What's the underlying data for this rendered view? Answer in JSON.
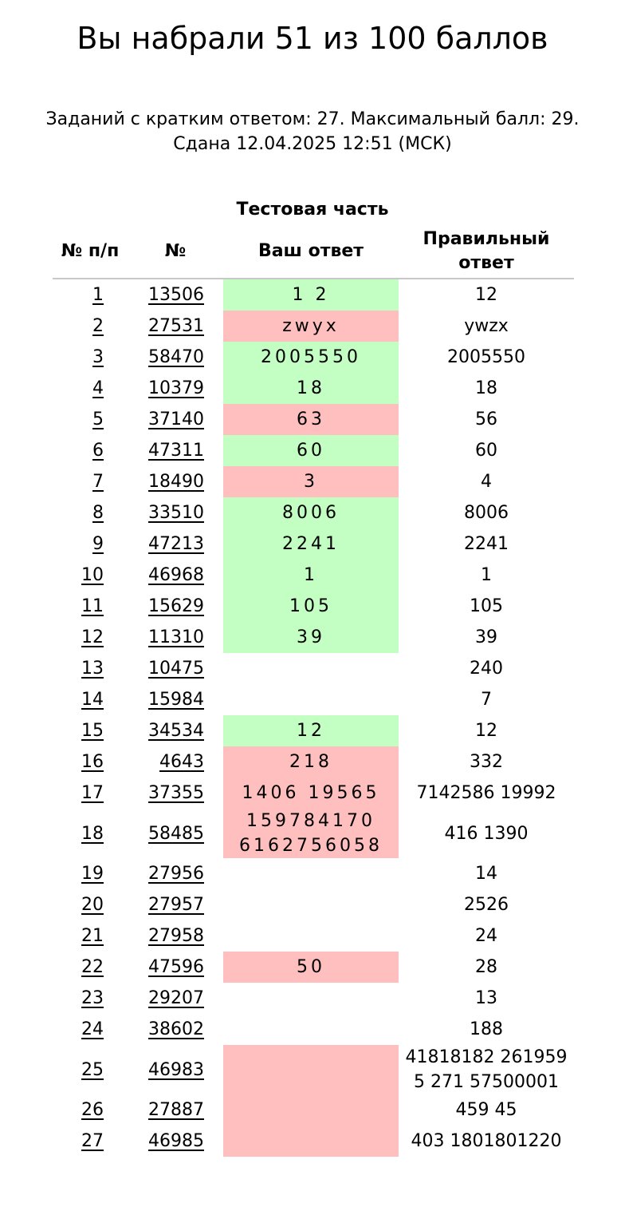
{
  "header": {
    "score_text": "Вы набрали 51 из 100 баллов",
    "summary_line": "Заданий с кратким ответом: 27. Максимальный балл: 29.",
    "submitted_line": "Сдана 12.04.2025 12:51 (МСК)"
  },
  "table": {
    "caption": "Тестовая часть",
    "columns": {
      "order": "№ п/п",
      "task_id": "№",
      "your_answer": "Ваш ответ",
      "correct_answer": "Правильный ответ"
    },
    "rows": [
      {
        "n": "1",
        "id": "13506",
        "answer": "1 2",
        "status": "correct",
        "correct": "12"
      },
      {
        "n": "2",
        "id": "27531",
        "answer": "zwyx",
        "status": "wrong",
        "correct": "ywzx"
      },
      {
        "n": "3",
        "id": "58470",
        "answer": "2005550",
        "status": "correct",
        "correct": "2005550"
      },
      {
        "n": "4",
        "id": "10379",
        "answer": "18",
        "status": "correct",
        "correct": "18"
      },
      {
        "n": "5",
        "id": "37140",
        "answer": "63",
        "status": "wrong",
        "correct": "56"
      },
      {
        "n": "6",
        "id": "47311",
        "answer": "60",
        "status": "correct",
        "correct": "60"
      },
      {
        "n": "7",
        "id": "18490",
        "answer": "3",
        "status": "wrong",
        "correct": "4"
      },
      {
        "n": "8",
        "id": "33510",
        "answer": "8006",
        "status": "correct",
        "correct": "8006"
      },
      {
        "n": "9",
        "id": "47213",
        "answer": "2241",
        "status": "correct",
        "correct": "2241"
      },
      {
        "n": "10",
        "id": "46968",
        "answer": "1",
        "status": "correct",
        "correct": "1"
      },
      {
        "n": "11",
        "id": "15629",
        "answer": "105",
        "status": "correct",
        "correct": "105"
      },
      {
        "n": "12",
        "id": "11310",
        "answer": "39",
        "status": "correct",
        "correct": "39"
      },
      {
        "n": "13",
        "id": "10475",
        "answer": "",
        "status": "empty",
        "correct": "240"
      },
      {
        "n": "14",
        "id": "15984",
        "answer": "",
        "status": "empty",
        "correct": "7"
      },
      {
        "n": "15",
        "id": "34534",
        "answer": "12",
        "status": "correct",
        "correct": "12"
      },
      {
        "n": "16",
        "id": "4643",
        "answer": "218",
        "status": "wrong",
        "correct": "332"
      },
      {
        "n": "17",
        "id": "37355",
        "answer": "1406 19565",
        "status": "wrong",
        "correct": "7142586 19992"
      },
      {
        "n": "18",
        "id": "58485",
        "answer": "159784170\n6162756058",
        "status": "wrong",
        "correct": "416 1390"
      },
      {
        "n": "19",
        "id": "27956",
        "answer": "",
        "status": "empty",
        "correct": "14"
      },
      {
        "n": "20",
        "id": "27957",
        "answer": "",
        "status": "empty",
        "correct": "2526"
      },
      {
        "n": "21",
        "id": "27958",
        "answer": "",
        "status": "empty",
        "correct": "24"
      },
      {
        "n": "22",
        "id": "47596",
        "answer": "50",
        "status": "wrong",
        "correct": "28"
      },
      {
        "n": "23",
        "id": "29207",
        "answer": "",
        "status": "empty",
        "correct": "13"
      },
      {
        "n": "24",
        "id": "38602",
        "answer": "",
        "status": "empty",
        "correct": "188"
      },
      {
        "n": "25",
        "id": "46983",
        "answer": "",
        "status": "wrong",
        "correct": "41818182 261959 5 271 57500001"
      },
      {
        "n": "26",
        "id": "27887",
        "answer": "",
        "status": "wrong",
        "correct": "459 45"
      },
      {
        "n": "27",
        "id": "46985",
        "answer": "",
        "status": "wrong",
        "correct": "403 1801801220"
      }
    ]
  },
  "colors": {
    "correct_bg": "#c3ffc3",
    "wrong_bg": "#ffbfbf",
    "header_rule": "#c8c8c8"
  }
}
